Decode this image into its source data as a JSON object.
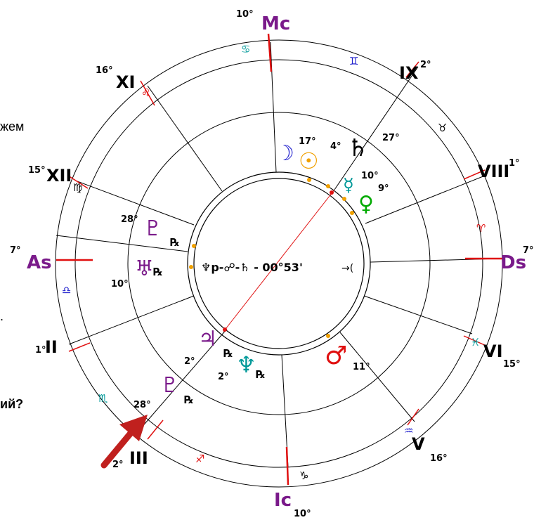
{
  "side_text": {
    "line1": "жем",
    "line2": ".",
    "line3": "ий?"
  },
  "aspect_label": "♆р-☍-♄ - 00°53'",
  "angles": {
    "mc": {
      "label": "Mc",
      "deg": "10°"
    },
    "ic": {
      "label": "Ic",
      "deg": "10°"
    },
    "as": {
      "label": "As",
      "deg": "7°"
    },
    "ds": {
      "label": "Ds",
      "deg": "7°"
    }
  },
  "houses": [
    {
      "label": "XI",
      "deg": "16°"
    },
    {
      "label": "XII",
      "deg": "15°"
    },
    {
      "label": "II",
      "deg": "1°"
    },
    {
      "label": "III",
      "deg": "2°"
    },
    {
      "label": "IX",
      "deg": "2°"
    },
    {
      "label": "VIII",
      "deg": "1°"
    },
    {
      "label": "VI",
      "deg": "15°"
    },
    {
      "label": "V",
      "deg": "16°"
    }
  ],
  "planets": [
    {
      "name": "moon",
      "glyph": "☽",
      "deg": "17°",
      "color": "#1a1acc"
    },
    {
      "name": "sun",
      "glyph": "☉",
      "deg": "4°",
      "color": "#f0a000"
    },
    {
      "name": "saturn",
      "glyph": "♄",
      "deg": "27°",
      "color": "#000000"
    },
    {
      "name": "mercury",
      "glyph": "☿",
      "deg": "10°",
      "color": "#009999"
    },
    {
      "name": "venus",
      "glyph": "♀",
      "deg": "9°",
      "color": "#00aa00"
    },
    {
      "name": "pluto",
      "glyph": "♇",
      "deg": "28°",
      "color": "#7a1a8a",
      "retro": "℞"
    },
    {
      "name": "uranus",
      "glyph": "♅",
      "deg": "10°",
      "color": "#7a1a8a",
      "retro": "℞"
    },
    {
      "name": "jupiter",
      "glyph": "♃",
      "deg": "2°",
      "color": "#7a1a8a",
      "retro": "℞"
    },
    {
      "name": "neptune",
      "glyph": "♆",
      "deg": "2°",
      "color": "#009999",
      "retro": "℞"
    },
    {
      "name": "mars",
      "glyph": "♂",
      "deg": "11°",
      "color": "#e01010"
    },
    {
      "name": "transit-pluto",
      "glyph": "♇",
      "deg": "28°",
      "color": "#7a1a8a",
      "retro": "℞"
    }
  ],
  "signs": [
    "♋",
    "♊",
    "♌",
    "♉",
    "♍",
    "♈",
    "♎",
    "♓",
    "♏",
    "♒",
    "♐",
    "♑"
  ],
  "colors": {
    "angle": "#7a1a8a",
    "axis": "#e01010",
    "arrow": "#c0201e",
    "sign_fire": "#e01010",
    "sign_earth": "#000000",
    "sign_air": "#1a1acc",
    "sign_water": "#009999"
  }
}
